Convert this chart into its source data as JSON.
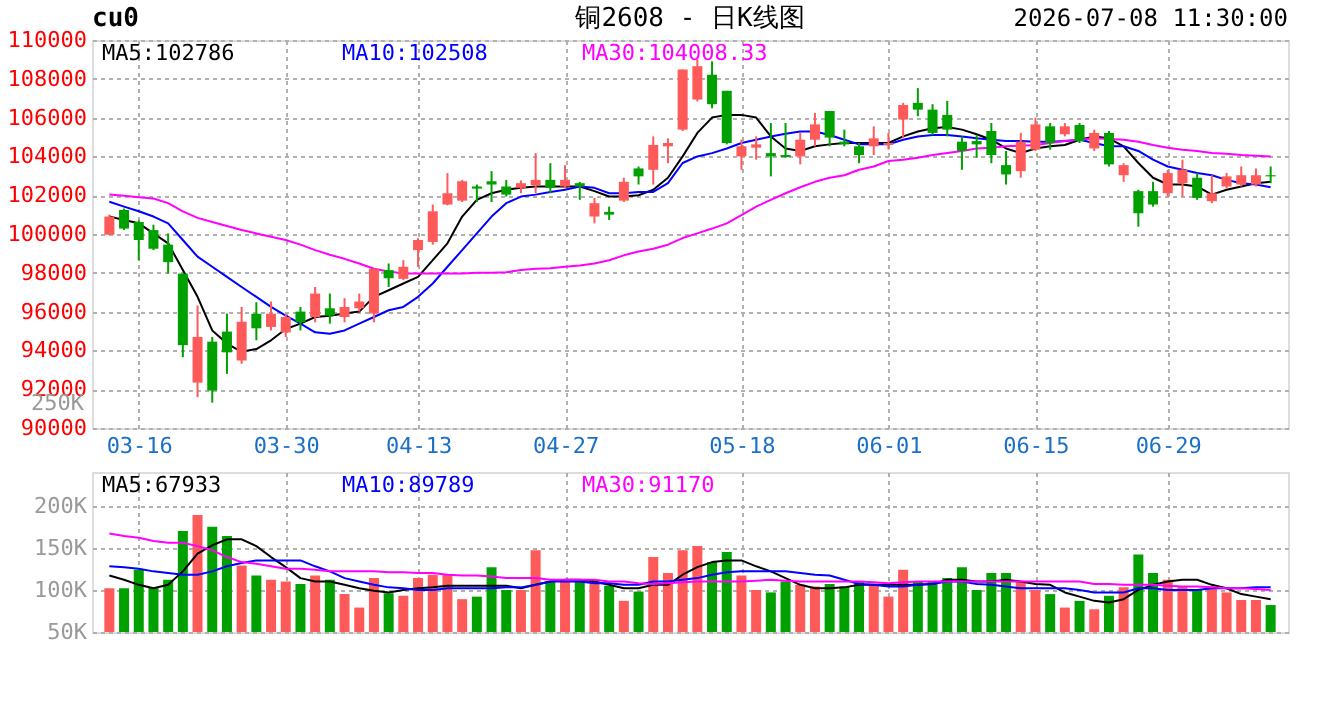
{
  "chart_data": [
    {
      "type": "candlestick",
      "title": "铜2608 - 日K线图",
      "annotations": [
        "cu0",
        "2026-07-08 11:30:00",
        "250K"
      ],
      "categories": [
        null,
        null,
        "03-16",
        null,
        null,
        null,
        null,
        null,
        null,
        null,
        null,
        null,
        "03-30",
        null,
        null,
        null,
        null,
        null,
        null,
        null,
        null,
        "04-13",
        null,
        null,
        null,
        null,
        null,
        null,
        null,
        null,
        null,
        "04-27",
        null,
        null,
        null,
        null,
        null,
        null,
        null,
        null,
        null,
        null,
        null,
        "05-18",
        null,
        null,
        null,
        null,
        null,
        null,
        null,
        null,
        null,
        "06-01",
        null,
        null,
        null,
        null,
        null,
        null,
        null,
        null,
        null,
        "06-15",
        null,
        null,
        null,
        null,
        null,
        null,
        null,
        null,
        "06-29",
        null,
        null,
        null,
        null,
        null,
        null,
        null
      ],
      "ohlc": [
        [
          99960,
          101000,
          99950,
          100900
        ],
        [
          101240,
          101310,
          100200,
          100280
        ],
        [
          100620,
          100700,
          98650,
          99690
        ],
        [
          100200,
          100480,
          99170,
          99240
        ],
        [
          99450,
          100030,
          97960,
          98550
        ],
        [
          97960,
          97960,
          93650,
          94270
        ],
        [
          92340,
          96310,
          91590,
          94690
        ],
        [
          94450,
          94690,
          91310,
          91930
        ],
        [
          94970,
          95900,
          92790,
          93900
        ],
        [
          93480,
          96240,
          93310,
          95480
        ],
        [
          95890,
          96480,
          94520,
          95140
        ],
        [
          95210,
          96520,
          95030,
          95890
        ],
        [
          94930,
          95860,
          94690,
          95720
        ],
        [
          96000,
          96240,
          95030,
          95450
        ],
        [
          95720,
          97270,
          95450,
          96930
        ],
        [
          96170,
          96930,
          95380,
          95790
        ],
        [
          95720,
          96690,
          95450,
          96240
        ],
        [
          96170,
          96930,
          96000,
          96520
        ],
        [
          95900,
          98210,
          95450,
          98210
        ],
        [
          98140,
          98480,
          97270,
          97720
        ],
        [
          97690,
          98650,
          97620,
          98310
        ],
        [
          99170,
          99790,
          98310,
          99690
        ],
        [
          99590,
          101520,
          99450,
          101170
        ],
        [
          101520,
          103140,
          101480,
          102100
        ],
        [
          101720,
          102790,
          101650,
          102720
        ],
        [
          102450,
          102550,
          101650,
          102340
        ],
        [
          102720,
          103240,
          101650,
          102550
        ],
        [
          102450,
          102790,
          101930,
          102030
        ],
        [
          102380,
          102760,
          102100,
          102620
        ],
        [
          102520,
          104170,
          102100,
          102790
        ],
        [
          102790,
          103650,
          102100,
          102380
        ],
        [
          102450,
          103550,
          102340,
          102790
        ],
        [
          102620,
          102690,
          101760,
          102450
        ],
        [
          100900,
          101860,
          100550,
          101590
        ],
        [
          101140,
          101410,
          100720,
          101000
        ],
        [
          101720,
          102900,
          101650,
          102690
        ],
        [
          103380,
          103480,
          102550,
          102970
        ],
        [
          103310,
          105030,
          102550,
          104590
        ],
        [
          104520,
          104930,
          103650,
          104690
        ],
        [
          105380,
          108480,
          105310,
          108480
        ],
        [
          106930,
          109000,
          106830,
          108650
        ],
        [
          108210,
          108900,
          106480,
          106690
        ],
        [
          107380,
          107380,
          104620,
          104690
        ],
        [
          104000,
          104860,
          103310,
          104520
        ],
        [
          104450,
          105030,
          103830,
          104620
        ],
        [
          104170,
          105720,
          102970,
          104000
        ],
        [
          104070,
          105720,
          103930,
          103970
        ],
        [
          104000,
          105210,
          103590,
          104860
        ],
        [
          104860,
          106240,
          104520,
          105650
        ],
        [
          106340,
          106340,
          104520,
          104970
        ],
        [
          104760,
          105380,
          104520,
          104620
        ],
        [
          104520,
          104690,
          103650,
          104070
        ],
        [
          104520,
          105550,
          104070,
          104930
        ],
        [
          104590,
          105210,
          104350,
          104690
        ],
        [
          105900,
          106760,
          104930,
          106650
        ],
        [
          106760,
          107520,
          106070,
          106410
        ],
        [
          106410,
          106690,
          105100,
          105210
        ],
        [
          106140,
          106860,
          105030,
          105380
        ],
        [
          104760,
          105030,
          103310,
          104280
        ],
        [
          104790,
          105100,
          103930,
          104620
        ],
        [
          105310,
          105720,
          103650,
          104070
        ],
        [
          103550,
          104280,
          102550,
          103070
        ],
        [
          103240,
          105210,
          102900,
          104760
        ],
        [
          104350,
          106000,
          104280,
          105650
        ],
        [
          105550,
          105720,
          104350,
          104690
        ],
        [
          105140,
          105720,
          105030,
          105550
        ],
        [
          105620,
          105720,
          104690,
          104790
        ],
        [
          104410,
          105380,
          104280,
          105210
        ],
        [
          105210,
          105310,
          103480,
          103590
        ],
        [
          103030,
          103650,
          102690,
          103550
        ],
        [
          102210,
          102280,
          100380,
          101070
        ],
        [
          102210,
          102690,
          101410,
          101520
        ],
        [
          102100,
          103310,
          101930,
          103140
        ],
        [
          102620,
          103830,
          101930,
          103310
        ],
        [
          102900,
          103140,
          101760,
          101860
        ],
        [
          101690,
          103030,
          101590,
          102100
        ],
        [
          102450,
          103140,
          102340,
          102970
        ],
        [
          102550,
          103480,
          102450,
          103030
        ],
        [
          102550,
          103380,
          102450,
          103030
        ],
        [
          103030,
          103480,
          102620,
          102970
        ]
      ],
      "colors": [
        "#ff5a5a",
        "#00a000",
        "#00a000",
        "#00a000",
        "#00a000",
        "#00a000",
        "#ff5a5a",
        "#00a000",
        "#00a000",
        "#ff5a5a",
        "#00a000",
        "#ff5a5a",
        "#ff5a5a",
        "#00a000",
        "#ff5a5a",
        "#00a000",
        "#ff5a5a",
        "#ff5a5a",
        "#ff5a5a",
        "#00a000",
        "#ff5a5a",
        "#ff5a5a",
        "#ff5a5a",
        "#ff5a5a",
        "#ff5a5a",
        "#00a000",
        "#00a000",
        "#00a000",
        "#ff5a5a",
        "#ff5a5a",
        "#00a000",
        "#ff5a5a",
        "#00a000",
        "#ff5a5a",
        "#00a000",
        "#ff5a5a",
        "#00a000",
        "#ff5a5a",
        "#ff5a5a",
        "#ff5a5a",
        "#ff5a5a",
        "#00a000",
        "#00a000",
        "#ff5a5a",
        "#ff5a5a",
        "#00a000",
        "#00a000",
        "#ff5a5a",
        "#ff5a5a",
        "#00a000",
        "#00a000",
        "#00a000",
        "#ff5a5a",
        "#ff5a5a",
        "#ff5a5a",
        "#00a000",
        "#00a000",
        "#00a000",
        "#00a000",
        "#00a000",
        "#00a000",
        "#00a000",
        "#ff5a5a",
        "#ff5a5a",
        "#00a000",
        "#ff5a5a",
        "#00a000",
        "#ff5a5a",
        "#00a000",
        "#ff5a5a",
        "#00a000",
        "#00a000",
        "#ff5a5a",
        "#ff5a5a",
        "#00a000",
        "#ff5a5a",
        "#ff5a5a",
        "#ff5a5a",
        "#ff5a5a",
        "#00a000"
      ],
      "series": [
        {
          "name": "MA5:102786",
          "type": "line",
          "color": "#000000",
          "values": [
            100900,
            100720,
            100550,
            100030,
            99520,
            98140,
            96760,
            95030,
            94350,
            93930,
            94070,
            94520,
            95100,
            95380,
            95720,
            95790,
            95900,
            96000,
            96760,
            97100,
            97450,
            97790,
            98650,
            99520,
            100900,
            101760,
            102100,
            102280,
            102380,
            102450,
            102450,
            102450,
            102450,
            102210,
            101930,
            101930,
            102000,
            102280,
            102900,
            104000,
            105210,
            106000,
            106140,
            106140,
            106000,
            105030,
            104410,
            104280,
            104520,
            104620,
            104690,
            104690,
            104690,
            104690,
            105030,
            105280,
            105450,
            105520,
            105380,
            105140,
            104860,
            104410,
            104170,
            104410,
            104520,
            104590,
            104860,
            105030,
            104930,
            104520,
            103660,
            102900,
            102550,
            102550,
            102450,
            102030,
            102280,
            102450,
            102620,
            102690
          ]
        },
        {
          "name": "MA10:102508",
          "type": "line",
          "color": "#0000ff",
          "values": [
            101660,
            101410,
            101170,
            100900,
            100550,
            99690,
            98830,
            98310,
            97790,
            97270,
            96760,
            96240,
            95790,
            95380,
            94930,
            94860,
            95030,
            95380,
            95720,
            96070,
            96240,
            96760,
            97450,
            98310,
            99170,
            100030,
            100900,
            101590,
            101930,
            102030,
            102170,
            102280,
            102450,
            102380,
            102100,
            102100,
            102170,
            102170,
            102620,
            103660,
            104000,
            104170,
            104410,
            104690,
            104860,
            105030,
            105170,
            105280,
            105280,
            105100,
            104860,
            104620,
            104620,
            104620,
            104860,
            105030,
            105100,
            105100,
            105030,
            104930,
            104860,
            104790,
            104790,
            104760,
            104760,
            104790,
            104860,
            104690,
            104520,
            104520,
            104280,
            103830,
            103480,
            103310,
            103140,
            103030,
            102790,
            102620,
            102550,
            102410
          ]
        },
        {
          "name": "MA30:104008.33",
          "type": "line",
          "color": "#ff00ff",
          "values": [
            102030,
            101970,
            101900,
            101830,
            101590,
            101170,
            100830,
            100620,
            100410,
            100210,
            100030,
            99860,
            99690,
            99450,
            99170,
            98930,
            98720,
            98480,
            98210,
            98070,
            97970,
            97970,
            97970,
            97970,
            97970,
            98000,
            98000,
            98030,
            98140,
            98210,
            98240,
            98310,
            98380,
            98480,
            98650,
            98900,
            99100,
            99240,
            99450,
            99790,
            100030,
            100280,
            100550,
            100970,
            101410,
            101760,
            102100,
            102410,
            102690,
            102900,
            103030,
            103310,
            103480,
            103760,
            103830,
            103930,
            104070,
            104170,
            104280,
            104410,
            104450,
            104520,
            104550,
            104590,
            104690,
            104790,
            104860,
            104930,
            104900,
            104860,
            104760,
            104590,
            104450,
            104340,
            104280,
            104170,
            104140,
            104070,
            104030,
            104000
          ]
        }
      ],
      "ylim": [
        90000,
        110000
      ],
      "yticks": [
        90000,
        92000,
        94000,
        96000,
        98000,
        100000,
        102000,
        104000,
        106000,
        108000,
        110000
      ],
      "grid": true
    },
    {
      "type": "bar",
      "tick_labels": "y",
      "categories": [
        null,
        null,
        null,
        null,
        null,
        null,
        null,
        null,
        null,
        null,
        null,
        null,
        null,
        null,
        null,
        null,
        null,
        null,
        null,
        null,
        null,
        null,
        null,
        null,
        null,
        null,
        null,
        null,
        null,
        null,
        null,
        null,
        null,
        null,
        null,
        null,
        null,
        null,
        null,
        null,
        null,
        null,
        null,
        null,
        null,
        null,
        null,
        null,
        null,
        null,
        null,
        null,
        null,
        null,
        null,
        null,
        null,
        null,
        null,
        null,
        null,
        null,
        null,
        null,
        null,
        null,
        null,
        null,
        null,
        null,
        null,
        null,
        null,
        null,
        null,
        null,
        null,
        null,
        null,
        null
      ],
      "series": [
        {
          "type": "bar",
          "values": [
            102000,
            102000,
            124000,
            103000,
            112000,
            170000,
            189000,
            175000,
            164000,
            129000,
            117000,
            112000,
            110000,
            107000,
            117000,
            112000,
            95000,
            79000,
            114000,
            96000,
            93000,
            114000,
            118000,
            118000,
            89000,
            92000,
            127000,
            100000,
            100000,
            147000,
            110000,
            112000,
            110000,
            112000,
            105000,
            87000,
            98000,
            139000,
            120000,
            147000,
            152000,
            133000,
            145000,
            117000,
            100000,
            97000,
            110000,
            106000,
            104000,
            107000,
            104000,
            110000,
            106000,
            92000,
            124000,
            110000,
            110000,
            114000,
            127000,
            100000,
            120000,
            120000,
            110000,
            100000,
            95000,
            79000,
            87000,
            77000,
            93000,
            103000,
            142000,
            120000,
            112000,
            104000,
            100000,
            104000,
            97000,
            88000,
            88000,
            82000
          ],
          "colors": [
            "#ff5a5a",
            "#00a000",
            "#00a000",
            "#00a000",
            "#00a000",
            "#00a000",
            "#ff5a5a",
            "#00a000",
            "#00a000",
            "#ff5a5a",
            "#00a000",
            "#ff5a5a",
            "#ff5a5a",
            "#00a000",
            "#ff5a5a",
            "#00a000",
            "#ff5a5a",
            "#ff5a5a",
            "#ff5a5a",
            "#00a000",
            "#ff5a5a",
            "#ff5a5a",
            "#ff5a5a",
            "#ff5a5a",
            "#ff5a5a",
            "#00a000",
            "#00a000",
            "#00a000",
            "#ff5a5a",
            "#ff5a5a",
            "#00a000",
            "#ff5a5a",
            "#00a000",
            "#ff5a5a",
            "#00a000",
            "#ff5a5a",
            "#00a000",
            "#ff5a5a",
            "#ff5a5a",
            "#ff5a5a",
            "#ff5a5a",
            "#00a000",
            "#00a000",
            "#ff5a5a",
            "#ff5a5a",
            "#00a000",
            "#00a000",
            "#ff5a5a",
            "#ff5a5a",
            "#00a000",
            "#00a000",
            "#00a000",
            "#ff5a5a",
            "#ff5a5a",
            "#ff5a5a",
            "#00a000",
            "#00a000",
            "#00a000",
            "#00a000",
            "#00a000",
            "#00a000",
            "#00a000",
            "#ff5a5a",
            "#ff5a5a",
            "#00a000",
            "#ff5a5a",
            "#00a000",
            "#ff5a5a",
            "#00a000",
            "#ff5a5a",
            "#00a000",
            "#00a000",
            "#ff5a5a",
            "#ff5a5a",
            "#00a000",
            "#ff5a5a",
            "#ff5a5a",
            "#ff5a5a",
            "#ff5a5a",
            "#00a000"
          ]
        },
        {
          "name": "MA5:67933",
          "type": "line",
          "color": "#000000",
          "values": [
            117000,
            112000,
            106000,
            102000,
            106000,
            122000,
            143000,
            153000,
            160000,
            160000,
            152000,
            139000,
            127000,
            114000,
            110000,
            110000,
            106000,
            102000,
            99000,
            97000,
            100000,
            102000,
            103000,
            105000,
            105000,
            105000,
            105000,
            105000,
            102000,
            106000,
            110000,
            112000,
            112000,
            110000,
            106000,
            102000,
            102000,
            106000,
            106000,
            118000,
            127000,
            133000,
            135000,
            135000,
            128000,
            122000,
            114000,
            106000,
            102000,
            102000,
            103000,
            106000,
            106000,
            106000,
            106000,
            106000,
            107000,
            112000,
            112000,
            110000,
            110000,
            112000,
            110000,
            107000,
            106000,
            97000,
            92000,
            87000,
            85000,
            89000,
            100000,
            106000,
            110000,
            112000,
            112000,
            106000,
            102000,
            95000,
            92000,
            89000
          ]
        },
        {
          "name": "MA10:89789",
          "type": "line",
          "color": "#0000ff",
          "values": [
            128000,
            127000,
            125000,
            122000,
            120000,
            118000,
            118000,
            122000,
            128000,
            132000,
            135000,
            135000,
            135000,
            135000,
            128000,
            122000,
            114000,
            110000,
            106000,
            103000,
            102000,
            100000,
            100000,
            102000,
            102000,
            102000,
            102000,
            103000,
            103000,
            106000,
            110000,
            110000,
            110000,
            108000,
            108000,
            106000,
            106000,
            110000,
            110000,
            112000,
            114000,
            118000,
            121000,
            122000,
            122000,
            122000,
            122000,
            120000,
            118000,
            117000,
            112000,
            107000,
            106000,
            104000,
            104000,
            106000,
            107000,
            110000,
            110000,
            107000,
            106000,
            104000,
            102000,
            102000,
            102000,
            102000,
            100000,
            97000,
            97000,
            97000,
            102000,
            102000,
            100000,
            100000,
            100000,
            102000,
            102000,
            102000,
            103000,
            103000
          ]
        },
        {
          "name": "MA30:91170",
          "type": "line",
          "color": "#ff00ff",
          "values": [
            167000,
            164000,
            162000,
            158000,
            156000,
            156000,
            152000,
            147000,
            139000,
            133000,
            131000,
            128000,
            125000,
            125000,
            124000,
            122000,
            122000,
            122000,
            122000,
            121000,
            121000,
            120000,
            120000,
            118000,
            117000,
            117000,
            116000,
            114000,
            114000,
            114000,
            112000,
            112000,
            112000,
            112000,
            110000,
            110000,
            108000,
            107000,
            108000,
            109000,
            110000,
            110000,
            110000,
            110000,
            111000,
            112000,
            111000,
            110000,
            110000,
            110000,
            110000,
            110000,
            109000,
            108000,
            109000,
            110000,
            110000,
            110000,
            110000,
            110000,
            110000,
            110000,
            110000,
            110000,
            110000,
            110000,
            110000,
            107000,
            107000,
            106000,
            106000,
            106000,
            105000,
            104000,
            104000,
            103000,
            102000,
            102000,
            101000,
            100000
          ]
        }
      ],
      "ylim": [
        50000,
        240000
      ],
      "yticks": [
        {
          "value": 50000,
          "label": "50K"
        },
        {
          "value": 100000,
          "label": "100K"
        },
        {
          "value": 150000,
          "label": "150K"
        },
        {
          "value": 200000,
          "label": "200K"
        }
      ],
      "grid": true
    }
  ]
}
